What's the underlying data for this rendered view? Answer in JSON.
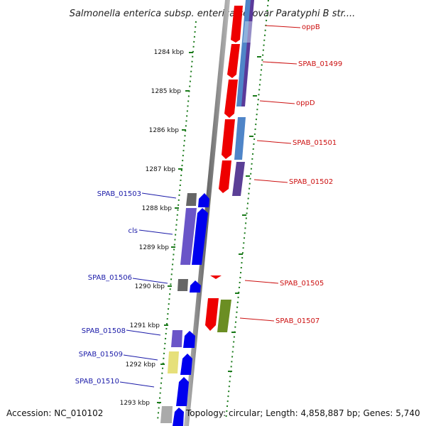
{
  "title": "Salmonella enterica subsp. enterica serovar Paratyphi B str....",
  "kbp_labels": [
    "1284 kbp",
    "1285 kbp",
    "1286 kbp",
    "1287 kbp",
    "1288 kbp",
    "1289 kbp",
    "1290 kbp",
    "1291 kbp",
    "1292 kbp",
    "1293 kbp"
  ],
  "genes_left": [
    {
      "label": "SPAB_01503"
    },
    {
      "label": "cls"
    },
    {
      "label": "SPAB_01506"
    },
    {
      "label": "SPAB_01508"
    },
    {
      "label": "SPAB_01509"
    },
    {
      "label": "SPAB_01510"
    }
  ],
  "genes_right": [
    {
      "label": "oppB"
    },
    {
      "label": "SPAB_01499"
    },
    {
      "label": "oppD"
    },
    {
      "label": "SPAB_01501"
    },
    {
      "label": "SPAB_01502"
    },
    {
      "label": "SPAB_01505"
    },
    {
      "label": "SPAB_01507"
    }
  ],
  "footer": {
    "accession": "Accession: NC_010102",
    "topology": "Topology: circular; Length: 4,858,887 bp; Genes: 5,740"
  },
  "colors": {
    "forward_strand": "#0000ee",
    "reverse_strand": "#ee0000",
    "label_left": "#1a1aa8",
    "label_right": "#cc1010",
    "tick": "#1a7a1a",
    "backbone": "#888888"
  }
}
